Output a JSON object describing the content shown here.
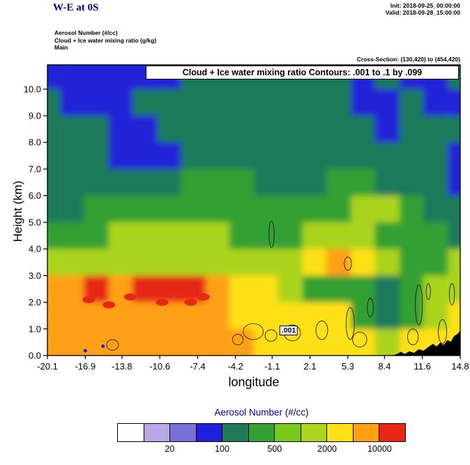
{
  "header": {
    "title": "W-E at 0S",
    "init": "Init: 2018-09-25_00:00:00",
    "valid": "Valid: 2018-09-28_15:00:00"
  },
  "info_block": {
    "line1": "Aerosol Number  (#/cc)",
    "line2": "Cloud + Ice water mixing ratio   (g/kg)",
    "line3": "Main"
  },
  "cross_section_label": "Cross-Section: (130,420) to (454,420)",
  "plot_labels": {
    "contour_box": "Cloud + Ice water mixing ratio Contours: .001 to .1 by .099",
    "contour_value": ".001",
    "xlabel": "longitude",
    "ylabel": "Height (km)"
  },
  "chart_data": {
    "type": "heatmap",
    "title": "W-E at 0S",
    "field_name": "Aerosol Number",
    "units": "#/cc",
    "overlay": "Cloud + Ice water mixing ratio Contours: .001 to .1 by .099 (g/kg)",
    "xlabel": "longitude",
    "ylabel": "Height (km)",
    "xlim": [
      -20.1,
      14.8
    ],
    "ylim": [
      0,
      10.91
    ],
    "x_ticks": [
      -20.1,
      -16.9,
      -13.8,
      -10.6,
      -7.4,
      -4.2,
      -1.1,
      2.1,
      5.3,
      8.4,
      11.6,
      14.8
    ],
    "y_ticks": [
      0,
      1,
      2,
      3,
      4,
      5,
      6,
      7,
      8,
      9,
      10
    ],
    "grid_lons": [
      -20.1,
      -18.0,
      -16.0,
      -13.9,
      -11.9,
      -9.8,
      -7.8,
      -5.7,
      -3.7,
      -1.6,
      0.4,
      2.5,
      4.5,
      6.6,
      8.6,
      10.7,
      12.7,
      14.8
    ],
    "grid_band_bottom_km": [
      10,
      9,
      8,
      7,
      6,
      5,
      4,
      3,
      2,
      1,
      0
    ],
    "aerosol_grid": [
      [
        70,
        70,
        70,
        70,
        70,
        70,
        150,
        150,
        150,
        150,
        150,
        150,
        150,
        70,
        150,
        70,
        70,
        150
      ],
      [
        150,
        70,
        70,
        70,
        150,
        150,
        150,
        150,
        150,
        150,
        150,
        150,
        150,
        70,
        70,
        150,
        70,
        70
      ],
      [
        150,
        150,
        150,
        70,
        70,
        150,
        150,
        150,
        150,
        150,
        150,
        150,
        150,
        150,
        70,
        150,
        150,
        150
      ],
      [
        150,
        150,
        150,
        70,
        70,
        70,
        150,
        150,
        150,
        150,
        150,
        150,
        150,
        150,
        150,
        150,
        150,
        70
      ],
      [
        150,
        150,
        150,
        150,
        150,
        150,
        350,
        350,
        350,
        150,
        150,
        150,
        350,
        350,
        150,
        150,
        150,
        70
      ],
      [
        150,
        150,
        350,
        350,
        350,
        350,
        350,
        350,
        350,
        350,
        350,
        350,
        350,
        1500,
        1500,
        350,
        150,
        150
      ],
      [
        350,
        350,
        350,
        1500,
        1500,
        1500,
        1500,
        1500,
        350,
        350,
        350,
        1500,
        1500,
        1500,
        350,
        350,
        350,
        150
      ],
      [
        1500,
        1500,
        1500,
        1500,
        1500,
        1500,
        1500,
        1500,
        1500,
        1500,
        1500,
        3500,
        7000,
        3500,
        1500,
        350,
        350,
        1500
      ],
      [
        7000,
        7000,
        15000,
        7000,
        15000,
        15000,
        15000,
        7000,
        3500,
        3500,
        1500,
        350,
        350,
        350,
        150,
        350,
        1500,
        1500
      ],
      [
        7000,
        7000,
        7000,
        7000,
        7000,
        7000,
        7000,
        7000,
        3500,
        3500,
        3500,
        3500,
        3500,
        350,
        150,
        350,
        1500,
        3500
      ],
      [
        7000,
        7000,
        7000,
        7000,
        7000,
        7000,
        7000,
        7000,
        7000,
        3500,
        3500,
        3500,
        3500,
        3500,
        1500,
        3500,
        3500,
        3500
      ]
    ],
    "red_cores": [
      {
        "lon": -16.6,
        "km": 2.1
      },
      {
        "lon": -14.9,
        "km": 1.9
      },
      {
        "lon": -13.1,
        "km": 2.2
      },
      {
        "lon": -10.4,
        "km": 2.0
      },
      {
        "lon": -9.0,
        "km": 2.3
      },
      {
        "lon": -8.0,
        "km": 2.0
      },
      {
        "lon": -6.9,
        "km": 2.2
      }
    ],
    "low_specks": [
      {
        "lon": -16.9,
        "km": 0.18
      },
      {
        "lon": -15.4,
        "km": 0.35
      }
    ],
    "cloud_contour_blobs": [
      {
        "lon": -1.15,
        "km": 4.55,
        "rx": 0.22,
        "ry": 0.5
      },
      {
        "lon": -2.7,
        "km": 0.9,
        "rx": 0.85,
        "ry": 0.3
      },
      {
        "lon": -1.2,
        "km": 0.75,
        "rx": 0.5,
        "ry": 0.22
      },
      {
        "lon": 0.6,
        "km": 0.85,
        "rx": 0.7,
        "ry": 0.3
      },
      {
        "lon": -4.0,
        "km": 0.6,
        "rx": 0.45,
        "ry": 0.2
      },
      {
        "lon": 3.1,
        "km": 0.95,
        "rx": 0.5,
        "ry": 0.35
      },
      {
        "lon": 5.5,
        "km": 1.2,
        "rx": 0.35,
        "ry": 0.6
      },
      {
        "lon": 6.3,
        "km": 0.6,
        "rx": 0.6,
        "ry": 0.28
      },
      {
        "lon": 7.2,
        "km": 1.8,
        "rx": 0.25,
        "ry": 0.35
      },
      {
        "lon": 5.3,
        "km": 3.45,
        "rx": 0.3,
        "ry": 0.25
      },
      {
        "lon": 10.8,
        "km": 0.7,
        "rx": 0.45,
        "ry": 0.3
      },
      {
        "lon": 11.3,
        "km": 1.9,
        "rx": 0.3,
        "ry": 0.75
      },
      {
        "lon": 12.1,
        "km": 2.4,
        "rx": 0.18,
        "ry": 0.3
      },
      {
        "lon": 13.3,
        "km": 0.9,
        "rx": 0.35,
        "ry": 0.45
      },
      {
        "lon": 14.1,
        "km": 2.3,
        "rx": 0.22,
        "ry": 0.4
      },
      {
        "lon": -14.6,
        "km": 0.4,
        "rx": 0.5,
        "ry": 0.2
      }
    ],
    "contour_label": {
      "lon": 0.3,
      "km": 0.95,
      "text": ".001"
    },
    "terrain_profile": [
      {
        "lon": 9.0,
        "km": 0.0
      },
      {
        "lon": 9.4,
        "km": 0.05
      },
      {
        "lon": 9.8,
        "km": 0.14
      },
      {
        "lon": 10.1,
        "km": 0.06
      },
      {
        "lon": 10.5,
        "km": 0.16
      },
      {
        "lon": 10.9,
        "km": 0.1
      },
      {
        "lon": 11.3,
        "km": 0.24
      },
      {
        "lon": 11.7,
        "km": 0.18
      },
      {
        "lon": 12.1,
        "km": 0.32
      },
      {
        "lon": 12.5,
        "km": 0.44
      },
      {
        "lon": 12.8,
        "km": 0.34
      },
      {
        "lon": 13.1,
        "km": 0.48
      },
      {
        "lon": 13.4,
        "km": 0.4
      },
      {
        "lon": 13.7,
        "km": 0.58
      },
      {
        "lon": 14.0,
        "km": 0.52
      },
      {
        "lon": 14.3,
        "km": 0.74
      },
      {
        "lon": 14.6,
        "km": 0.82
      },
      {
        "lon": 14.8,
        "km": 0.95
      }
    ],
    "colorbar": {
      "title": "Aerosol Number  (#/cc)",
      "colors": [
        "#ffffff",
        "#b8a8e8",
        "#7a6ed8",
        "#2020d8",
        "#1f7a5a",
        "#32a032",
        "#78c81e",
        "#aad41e",
        "#ffe014",
        "#ffa014",
        "#e62814"
      ],
      "thresholds": [
        10,
        20,
        50,
        100,
        200,
        500,
        1000,
        2000,
        5000,
        10000
      ],
      "tick_labels": [
        "20",
        "100",
        "500",
        "2000",
        "10000"
      ],
      "tick_boundaries": [
        2,
        4,
        6,
        8,
        10
      ]
    }
  }
}
